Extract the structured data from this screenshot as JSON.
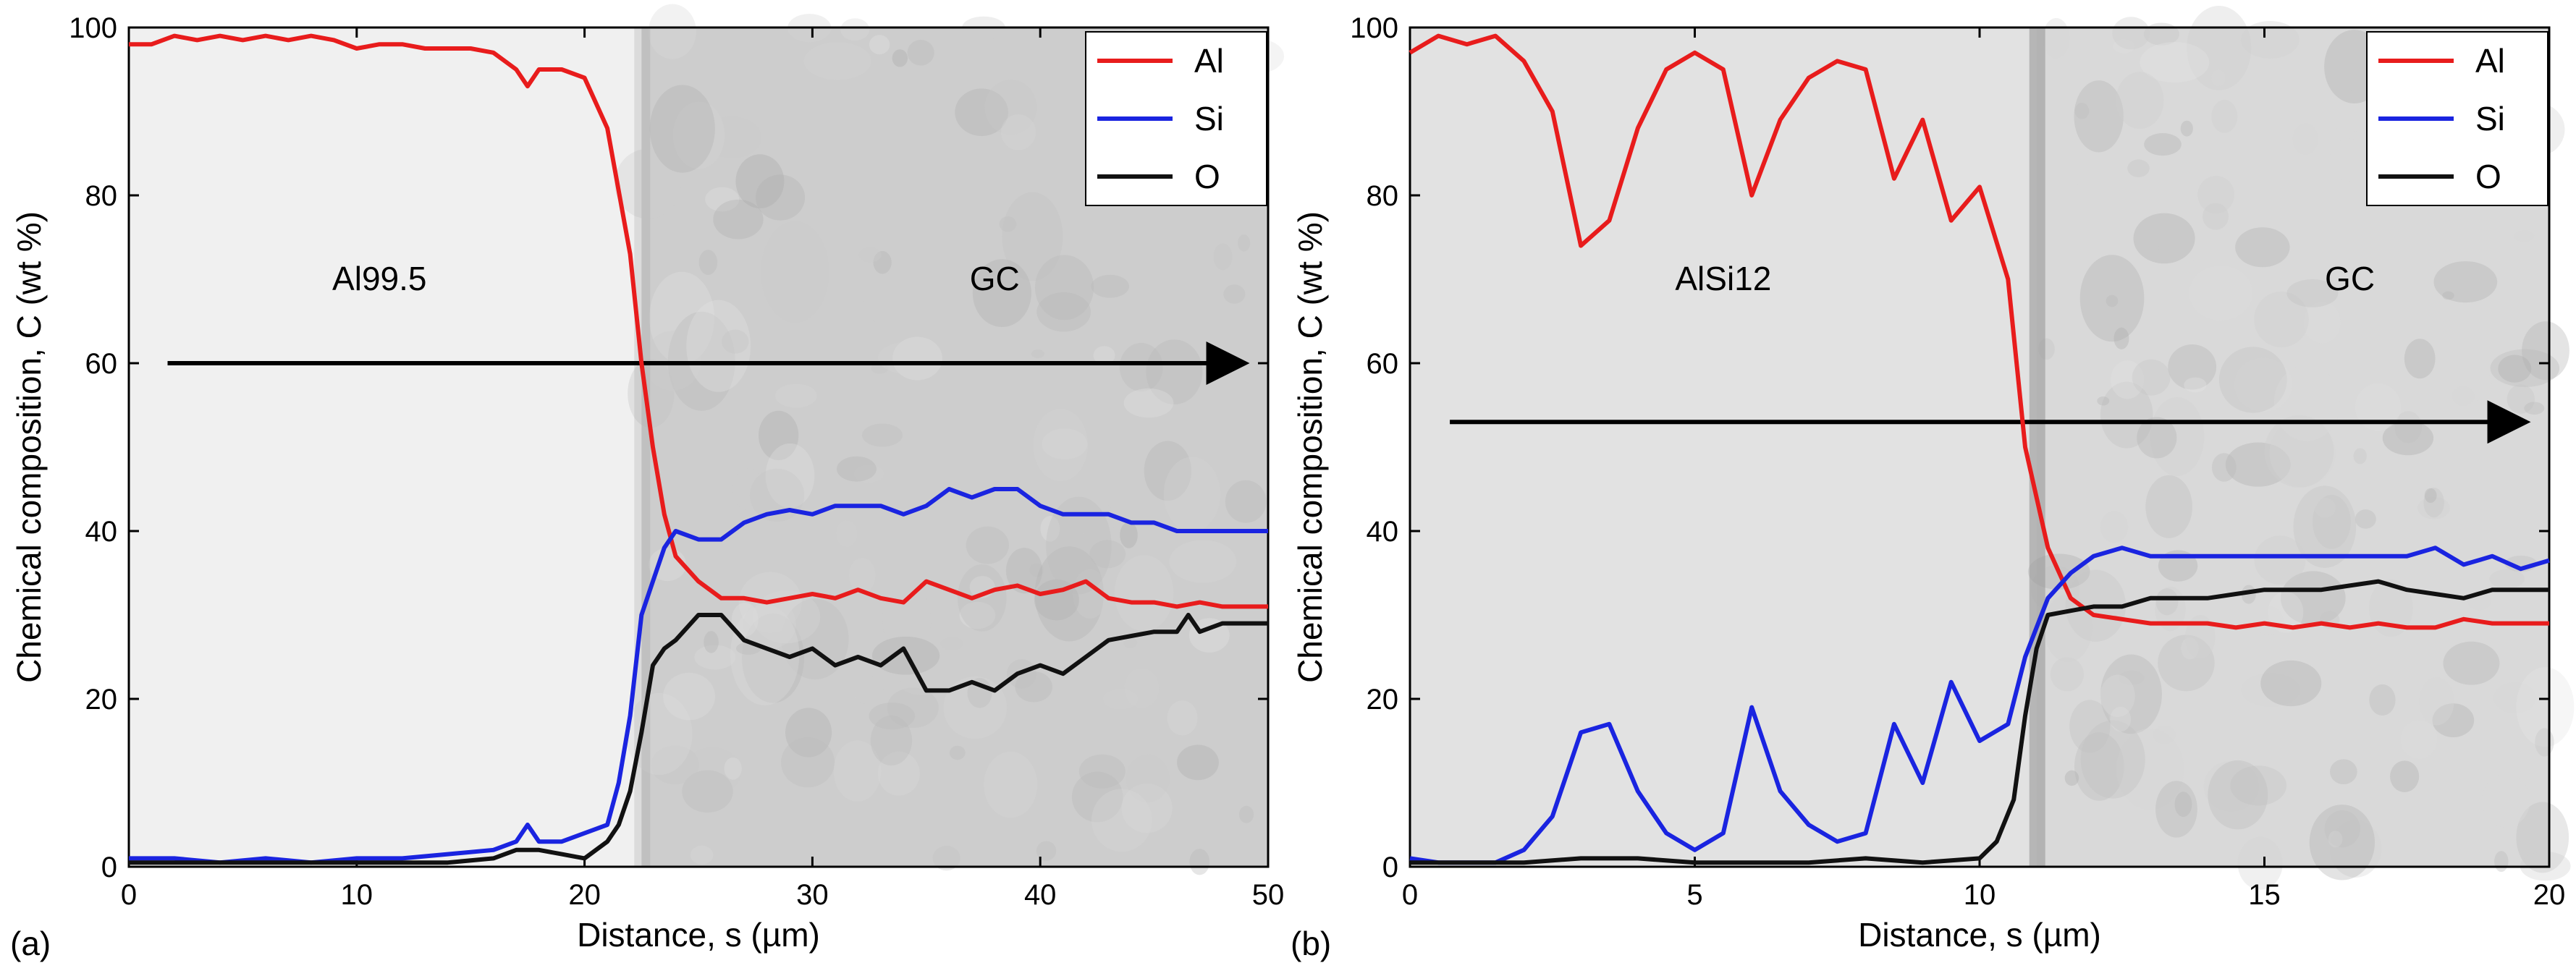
{
  "chart_data": [
    {
      "type": "line",
      "panel_label": "(a)",
      "xlabel": "Distance, s (µm)",
      "ylabel": "Chemical composition, C (wt %)",
      "xlim": [
        0,
        50
      ],
      "ylim": [
        0,
        100
      ],
      "xticks": [
        0,
        10,
        20,
        30,
        40,
        50
      ],
      "yticks": [
        0,
        20,
        40,
        60,
        80,
        100
      ],
      "legend_position": "top-right",
      "background": "SEM micrograph of Al99.5 / GC interface",
      "annotations": [
        {
          "text": "Al99.5",
          "x": 11,
          "y": 70
        },
        {
          "text": "GC",
          "x": 38,
          "y": 70
        }
      ],
      "arrow": {
        "x1": 1.7,
        "y1": 60,
        "x2": 49,
        "y2": 60
      },
      "series": [
        {
          "name": "Al",
          "color": "#e81c1c",
          "x": [
            0,
            1,
            2,
            3,
            4,
            5,
            6,
            7,
            8,
            9,
            10,
            11,
            12,
            13,
            14,
            15,
            16,
            17,
            17.5,
            18,
            19,
            20,
            21,
            22,
            22.5,
            23,
            23.5,
            24,
            25,
            26,
            27,
            28,
            29,
            30,
            31,
            32,
            33,
            34,
            35,
            36,
            37,
            38,
            39,
            40,
            41,
            42,
            43,
            44,
            45,
            46,
            47,
            48,
            49,
            50
          ],
          "y": [
            98,
            98,
            99,
            98.5,
            99,
            98.5,
            99,
            98.5,
            99,
            98.5,
            97.5,
            98,
            98,
            97.5,
            97.5,
            97.5,
            97,
            95,
            93,
            95,
            95,
            94,
            88,
            73,
            60,
            50,
            42,
            37,
            34,
            32,
            32,
            31.5,
            32,
            32.5,
            32,
            33,
            32,
            31.5,
            34,
            33,
            32,
            33,
            33.5,
            32.5,
            33,
            34,
            32,
            31.5,
            31.5,
            31,
            31.5,
            31,
            31,
            31
          ]
        },
        {
          "name": "Si",
          "color": "#1a24e0",
          "x": [
            0,
            2,
            4,
            6,
            8,
            10,
            12,
            14,
            16,
            17,
            17.5,
            18,
            19,
            20,
            21,
            21.5,
            22,
            22.5,
            23,
            23.5,
            24,
            25,
            26,
            27,
            28,
            29,
            30,
            31,
            32,
            33,
            34,
            35,
            36,
            37,
            38,
            39,
            40,
            41,
            42,
            43,
            44,
            45,
            46,
            47,
            48,
            49,
            50
          ],
          "y": [
            1,
            1,
            0.5,
            1,
            0.5,
            1,
            1,
            1.5,
            2,
            3,
            5,
            3,
            3,
            4,
            5,
            10,
            18,
            30,
            34,
            38,
            40,
            39,
            39,
            41,
            42,
            42.5,
            42,
            43,
            43,
            43,
            42,
            43,
            45,
            44,
            45,
            45,
            43,
            42,
            42,
            42,
            41,
            41,
            40,
            40,
            40,
            40,
            40
          ],
          "y_unit": "wt %"
        },
        {
          "name": "O",
          "color": "#111111",
          "x": [
            0,
            2,
            4,
            6,
            8,
            10,
            12,
            14,
            16,
            17,
            18,
            19,
            20,
            21,
            21.5,
            22,
            22.5,
            23,
            23.5,
            24,
            25,
            26,
            27,
            28,
            29,
            30,
            31,
            32,
            33,
            34,
            35,
            36,
            37,
            38,
            39,
            40,
            41,
            42,
            43,
            44,
            45,
            46,
            46.5,
            47,
            48,
            49,
            50
          ],
          "y": [
            0.5,
            0.5,
            0.5,
            0.5,
            0.5,
            0.5,
            0.5,
            0.5,
            1,
            2,
            2,
            1.5,
            1,
            3,
            5,
            9,
            16,
            24,
            26,
            27,
            30,
            30,
            27,
            26,
            25,
            26,
            24,
            25,
            24,
            26,
            21,
            21,
            22,
            21,
            23,
            24,
            23,
            25,
            27,
            27.5,
            28,
            28,
            30,
            28,
            29,
            29,
            29
          ]
        }
      ]
    },
    {
      "type": "line",
      "panel_label": "(b)",
      "xlabel": "Distance, s (µm)",
      "ylabel": "Chemical composition, C (wt %)",
      "xlim": [
        0,
        20
      ],
      "ylim": [
        0,
        100
      ],
      "xticks": [
        0,
        5,
        10,
        15,
        20
      ],
      "yticks": [
        0,
        20,
        40,
        60,
        80,
        100
      ],
      "legend_position": "top-right",
      "background": "SEM micrograph of AlSi12 / GC interface",
      "annotations": [
        {
          "text": "AlSi12",
          "x": 5.5,
          "y": 70
        },
        {
          "text": "GC",
          "x": 16.5,
          "y": 70
        }
      ],
      "arrow": {
        "x1": 0.7,
        "y1": 53,
        "x2": 19.6,
        "y2": 53
      },
      "series": [
        {
          "name": "Al",
          "color": "#e81c1c",
          "x": [
            0,
            0.5,
            1,
            1.5,
            2,
            2.5,
            3,
            3.5,
            4,
            4.5,
            5,
            5.5,
            6,
            6.5,
            7,
            7.5,
            8,
            8.5,
            9,
            9.5,
            10,
            10.5,
            10.8,
            11.2,
            11.6,
            12,
            12.5,
            13,
            13.5,
            14,
            14.5,
            15,
            15.5,
            16,
            16.5,
            17,
            17.5,
            18,
            18.5,
            19,
            19.5,
            20
          ],
          "y": [
            97,
            99,
            98,
            99,
            96,
            90,
            74,
            77,
            88,
            95,
            97,
            95,
            80,
            89,
            94,
            96,
            95,
            82,
            89,
            77,
            81,
            70,
            50,
            38,
            32,
            30,
            29.5,
            29,
            29,
            29,
            28.5,
            29,
            28.5,
            29,
            28.5,
            29,
            28.5,
            28.5,
            29.5,
            29,
            29,
            29
          ]
        },
        {
          "name": "Si",
          "color": "#1a24e0",
          "x": [
            0,
            0.5,
            1,
            1.5,
            2,
            2.5,
            3,
            3.5,
            4,
            4.5,
            5,
            5.5,
            6,
            6.5,
            7,
            7.5,
            8,
            8.5,
            9,
            9.5,
            10,
            10.5,
            10.8,
            11.2,
            11.6,
            12,
            12.5,
            13,
            13.5,
            14,
            14.5,
            15,
            15.5,
            16,
            16.5,
            17,
            17.5,
            18,
            18.5,
            19,
            19.5,
            20
          ],
          "y": [
            1,
            0.5,
            0.5,
            0.5,
            2,
            6,
            16,
            17,
            9,
            4,
            2,
            4,
            19,
            9,
            5,
            3,
            4,
            17,
            10,
            22,
            15,
            17,
            25,
            32,
            35,
            37,
            38,
            37,
            37,
            37,
            37,
            37,
            37,
            37,
            37,
            37,
            37,
            38,
            36,
            37,
            35.5,
            36.5
          ]
        },
        {
          "name": "O",
          "color": "#111111",
          "x": [
            0,
            1,
            2,
            3,
            4,
            5,
            6,
            7,
            8,
            9,
            10,
            10.3,
            10.6,
            10.8,
            11,
            11.2,
            11.6,
            12,
            12.5,
            13,
            13.5,
            14,
            14.5,
            15,
            15.5,
            16,
            16.5,
            17,
            17.5,
            18,
            18.5,
            19,
            19.5,
            20
          ],
          "y": [
            0.5,
            0.5,
            0.5,
            1,
            1,
            0.5,
            0.5,
            0.5,
            1,
            0.5,
            1,
            3,
            8,
            18,
            26,
            30,
            30.5,
            31,
            31,
            32,
            32,
            32,
            32.5,
            33,
            33,
            33,
            33.5,
            34,
            33,
            32.5,
            32,
            33,
            33,
            33
          ]
        }
      ]
    }
  ]
}
